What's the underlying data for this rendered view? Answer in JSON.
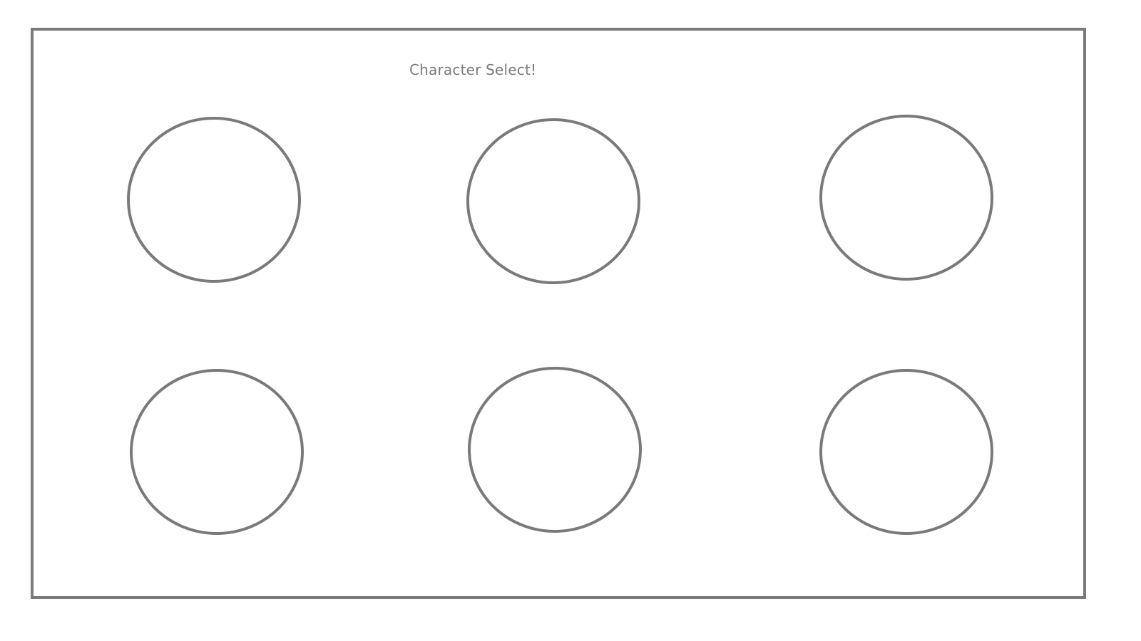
{
  "screen": {
    "title": "Character Select!"
  },
  "colors": {
    "outline": "#7a7a7a",
    "background": "#ffffff"
  },
  "character_slots": [
    {
      "index": 1,
      "row": 1,
      "column": 1,
      "icon": "empty-circle-slot"
    },
    {
      "index": 2,
      "row": 1,
      "column": 2,
      "icon": "empty-circle-slot"
    },
    {
      "index": 3,
      "row": 1,
      "column": 3,
      "icon": "empty-circle-slot"
    },
    {
      "index": 4,
      "row": 2,
      "column": 1,
      "icon": "empty-circle-slot"
    },
    {
      "index": 5,
      "row": 2,
      "column": 2,
      "icon": "empty-circle-slot"
    },
    {
      "index": 6,
      "row": 2,
      "column": 3,
      "icon": "empty-circle-slot"
    }
  ]
}
